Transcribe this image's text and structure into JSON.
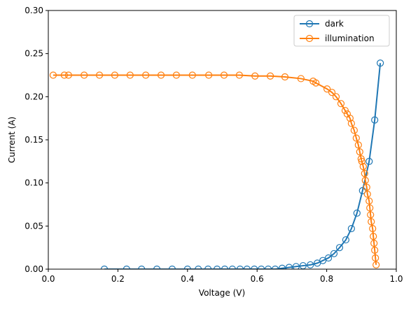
{
  "chart_data": {
    "type": "line",
    "xlabel": "Voltage (V)",
    "ylabel": "Current (A)",
    "xlim": [
      0,
      1.0
    ],
    "ylim": [
      0,
      0.3
    ],
    "xticks": [
      {
        "value": 0,
        "label": "0.0"
      },
      {
        "value": 0.2,
        "label": "0.2"
      },
      {
        "value": 0.4,
        "label": "0.4"
      },
      {
        "value": 0.6,
        "label": "0.6"
      },
      {
        "value": 0.8,
        "label": "0.8"
      },
      {
        "value": 1.0,
        "label": "1.0"
      }
    ],
    "yticks": [
      {
        "value": 0,
        "label": "0.00"
      },
      {
        "value": 0.05,
        "label": "0.05"
      },
      {
        "value": 0.1,
        "label": "0.10"
      },
      {
        "value": 0.15,
        "label": "0.15"
      },
      {
        "value": 0.2,
        "label": "0.20"
      },
      {
        "value": 0.25,
        "label": "0.25"
      },
      {
        "value": 0.3,
        "label": "0.30"
      }
    ],
    "legend": "upper right",
    "series": [
      {
        "name": "dark",
        "color": "#1f77b4",
        "x": [
          0.161,
          0.225,
          0.268,
          0.312,
          0.356,
          0.4,
          0.431,
          0.459,
          0.485,
          0.507,
          0.529,
          0.551,
          0.571,
          0.592,
          0.612,
          0.632,
          0.652,
          0.672,
          0.692,
          0.712,
          0.732,
          0.753,
          0.773,
          0.789,
          0.805,
          0.821,
          0.837,
          0.855,
          0.871,
          0.887,
          0.903,
          0.922,
          0.938,
          0.954
        ],
        "values": [
          0,
          0,
          0,
          0,
          0,
          0,
          0,
          0,
          0,
          0,
          0,
          0,
          0,
          0,
          0,
          0,
          0,
          0.001,
          0.002,
          0.003,
          0.004,
          0.005,
          0.007,
          0.01,
          0.013,
          0.018,
          0.025,
          0.034,
          0.047,
          0.065,
          0.091,
          0.125,
          0.173,
          0.239
        ]
      },
      {
        "name": "illumination",
        "color": "#ff7f0e",
        "x": [
          0.014,
          0.046,
          0.058,
          0.103,
          0.147,
          0.191,
          0.235,
          0.28,
          0.324,
          0.368,
          0.414,
          0.461,
          0.505,
          0.549,
          0.594,
          0.638,
          0.68,
          0.726,
          0.761,
          0.769,
          0.801,
          0.815,
          0.827,
          0.841,
          0.853,
          0.859,
          0.867,
          0.871,
          0.879,
          0.885,
          0.891,
          0.895,
          0.899,
          0.901,
          0.905,
          0.909,
          0.911,
          0.915,
          0.917,
          0.922,
          0.924,
          0.926,
          0.928,
          0.932,
          0.934,
          0.936,
          0.938,
          0.94,
          0.942
        ],
        "values": [
          0.225,
          0.225,
          0.225,
          0.225,
          0.225,
          0.225,
          0.225,
          0.225,
          0.225,
          0.225,
          0.225,
          0.225,
          0.225,
          0.225,
          0.224,
          0.224,
          0.223,
          0.221,
          0.218,
          0.216,
          0.209,
          0.205,
          0.2,
          0.192,
          0.184,
          0.18,
          0.175,
          0.169,
          0.161,
          0.152,
          0.144,
          0.136,
          0.128,
          0.125,
          0.119,
          0.111,
          0.103,
          0.095,
          0.087,
          0.079,
          0.071,
          0.063,
          0.055,
          0.047,
          0.038,
          0.03,
          0.022,
          0.013,
          0.005
        ]
      }
    ]
  }
}
